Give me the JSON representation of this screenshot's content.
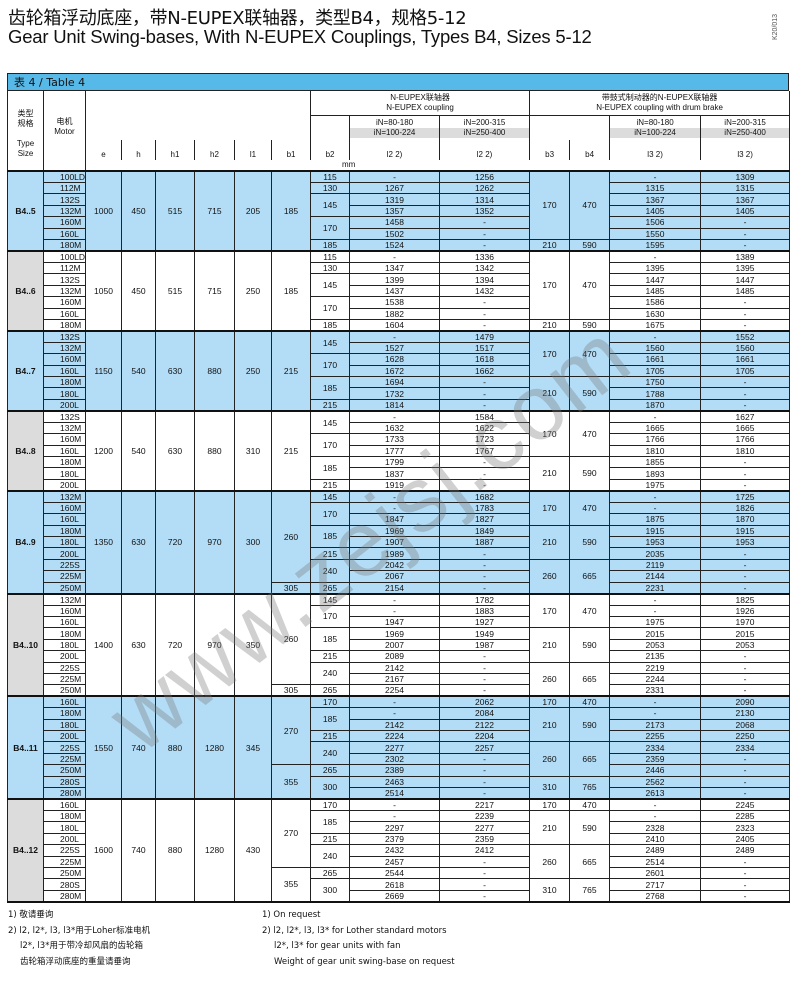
{
  "title_cn": "齿轮箱浮动底座，带N-EUPEX联轴器，类型B4，规格5-12",
  "title_en": "Gear Unit Swing-bases, With N-EUPEX Couplings, Types B4, Sizes 5-12",
  "doc_code": "K20/013",
  "watermark": "www.zejsj.com",
  "colors": {
    "title_bar": "#56b9e8",
    "row_blue": "#b3ddf6",
    "type_grey": "#dcdcdc"
  },
  "table": {
    "caption": "表 4 / Table 4",
    "header": {
      "type_cn": "类型\n规格",
      "type_en": "Type\nSize",
      "motor_cn": "电机",
      "motor_en": "Motor",
      "coupling_cn": "N-EUPEX联轴器",
      "coupling_en": "N-EUPEX coupling",
      "brake_cn": "带鼓式制动器的N-EUPEX联轴器",
      "brake_en": "N-EUPEX coupling with drum brake",
      "ratio_a1": "iN=80-180",
      "ratio_a2": "iN=100-224",
      "ratio_b1": "iN=200-315",
      "ratio_b2": "iN=250-400",
      "cols": [
        "e",
        "h",
        "h1",
        "h2",
        "l1",
        "b1",
        "b2",
        "l2 2)",
        "l2 2)",
        "b3",
        "b4",
        "l3 2)",
        "l3 2)"
      ],
      "unit": "mm"
    },
    "groups": [
      {
        "type": "B4..5",
        "e": "1000",
        "h": "450",
        "h1": "515",
        "h2": "715",
        "l1": "205",
        "motors": [
          "100LD",
          "112M",
          "132S",
          "132M",
          "160M",
          "160L",
          "180M"
        ],
        "b1": [
          {
            "v": "185",
            "span": 7
          }
        ],
        "b2": [
          {
            "v": "115",
            "span": 1
          },
          {
            "v": "130",
            "span": 1
          },
          {
            "v": "145",
            "span": 2
          },
          {
            "v": "170",
            "span": 2
          },
          {
            "v": "185",
            "span": 1
          }
        ],
        "l2a": [
          "-",
          "1267",
          "1319",
          "1357",
          "1458",
          "1502",
          "1524"
        ],
        "l2b": [
          "1256",
          "1262",
          "1314",
          "1352",
          "-",
          "-",
          "-"
        ],
        "b34": [
          {
            "b3": "170",
            "b4": "470",
            "span": 6
          },
          {
            "b3": "210",
            "b4": "590",
            "span": 1
          }
        ],
        "l3a": [
          "-",
          "1315",
          "1367",
          "1405",
          "1506",
          "1550",
          "1595"
        ],
        "l3b": [
          "1309",
          "1315",
          "1367",
          "1405",
          "-",
          "-",
          "-"
        ]
      },
      {
        "type": "B4..6",
        "e": "1050",
        "h": "450",
        "h1": "515",
        "h2": "715",
        "l1": "250",
        "motors": [
          "100LD",
          "112M",
          "132S",
          "132M",
          "160M",
          "160L",
          "180M"
        ],
        "b1": [
          {
            "v": "185",
            "span": 7
          }
        ],
        "b2": [
          {
            "v": "115",
            "span": 1
          },
          {
            "v": "130",
            "span": 1
          },
          {
            "v": "145",
            "span": 2
          },
          {
            "v": "170",
            "span": 2
          },
          {
            "v": "185",
            "span": 1
          }
        ],
        "l2a": [
          "-",
          "1347",
          "1399",
          "1437",
          "1538",
          "1882",
          "1604"
        ],
        "l2b": [
          "1336",
          "1342",
          "1394",
          "1432",
          "-",
          "-",
          "-"
        ],
        "b34": [
          {
            "b3": "170",
            "b4": "470",
            "span": 6
          },
          {
            "b3": "210",
            "b4": "590",
            "span": 1
          }
        ],
        "l3a": [
          "-",
          "1395",
          "1447",
          "1485",
          "1586",
          "1630",
          "1675"
        ],
        "l3b": [
          "1389",
          "1395",
          "1447",
          "1485",
          "-",
          "-",
          "-"
        ]
      },
      {
        "type": "B4..7",
        "e": "1150",
        "h": "540",
        "h1": "630",
        "h2": "880",
        "l1": "250",
        "motors": [
          "132S",
          "132M",
          "160M",
          "160L",
          "180M",
          "180L",
          "200L"
        ],
        "b1": [
          {
            "v": "215",
            "span": 7
          }
        ],
        "b2": [
          {
            "v": "145",
            "span": 2
          },
          {
            "v": "170",
            "span": 2
          },
          {
            "v": "185",
            "span": 2
          },
          {
            "v": "215",
            "span": 1
          }
        ],
        "l2a": [
          "-",
          "1527",
          "1628",
          "1672",
          "1694",
          "1732",
          "1814"
        ],
        "l2b": [
          "1479",
          "1517",
          "1618",
          "1662",
          "-",
          "-",
          "-"
        ],
        "b34": [
          {
            "b3": "170",
            "b4": "470",
            "span": 4
          },
          {
            "b3": "210",
            "b4": "590",
            "span": 3
          }
        ],
        "l3a": [
          "-",
          "1560",
          "1661",
          "1705",
          "1750",
          "1788",
          "1870"
        ],
        "l3b": [
          "1552",
          "1560",
          "1661",
          "1705",
          "-",
          "-",
          "-"
        ]
      },
      {
        "type": "B4..8",
        "e": "1200",
        "h": "540",
        "h1": "630",
        "h2": "880",
        "l1": "310",
        "motors": [
          "132S",
          "132M",
          "160M",
          "160L",
          "180M",
          "180L",
          "200L"
        ],
        "b1": [
          {
            "v": "215",
            "span": 7
          }
        ],
        "b2": [
          {
            "v": "145",
            "span": 2
          },
          {
            "v": "170",
            "span": 2
          },
          {
            "v": "185",
            "span": 2
          },
          {
            "v": "215",
            "span": 1
          }
        ],
        "l2a": [
          "-",
          "1632",
          "1733",
          "1777",
          "1799",
          "1837",
          "1919"
        ],
        "l2b": [
          "1584",
          "1622",
          "1723",
          "1767",
          "-",
          "-",
          "-"
        ],
        "b34": [
          {
            "b3": "170",
            "b4": "470",
            "span": 4
          },
          {
            "b3": "210",
            "b4": "590",
            "span": 3
          }
        ],
        "l3a": [
          "-",
          "1665",
          "1766",
          "1810",
          "1855",
          "1893",
          "1975"
        ],
        "l3b": [
          "1627",
          "1665",
          "1766",
          "1810",
          "-",
          "-",
          "-"
        ]
      },
      {
        "type": "B4..9",
        "e": "1350",
        "h": "630",
        "h1": "720",
        "h2": "970",
        "l1": "300",
        "motors": [
          "132M",
          "160M",
          "160L",
          "180M",
          "180L",
          "200L",
          "225S",
          "225M",
          "250M"
        ],
        "b1": [
          {
            "v": "260",
            "span": 8
          },
          {
            "v": "305",
            "span": 1
          }
        ],
        "b2": [
          {
            "v": "145",
            "span": 1
          },
          {
            "v": "170",
            "span": 2
          },
          {
            "v": "185",
            "span": 2
          },
          {
            "v": "215",
            "span": 1
          },
          {
            "v": "240",
            "span": 2
          },
          {
            "v": "265",
            "span": 1
          }
        ],
        "l2a": [
          "-",
          "-",
          "1847",
          "1969",
          "1907",
          "1989",
          "2042",
          "2067",
          "2154"
        ],
        "l2b": [
          "1682",
          "1783",
          "1827",
          "1849",
          "1887",
          "-",
          "-",
          "-",
          "-"
        ],
        "b34": [
          {
            "b3": "170",
            "b4": "470",
            "span": 3
          },
          {
            "b3": "210",
            "b4": "590",
            "span": 3
          },
          {
            "b3": "260",
            "b4": "665",
            "span": 3
          }
        ],
        "l3a": [
          "-",
          "-",
          "1875",
          "1915",
          "1953",
          "2035",
          "2119",
          "2144",
          "2231"
        ],
        "l3b": [
          "1725",
          "1826",
          "1870",
          "1915",
          "1953",
          "-",
          "-",
          "-",
          "-"
        ]
      },
      {
        "type": "B4..10",
        "e": "1400",
        "h": "630",
        "h1": "720",
        "h2": "970",
        "l1": "350",
        "motors": [
          "132M",
          "160M",
          "160L",
          "180M",
          "180L",
          "200L",
          "225S",
          "225M",
          "250M"
        ],
        "b1": [
          {
            "v": "260",
            "span": 8
          },
          {
            "v": "305",
            "span": 1
          }
        ],
        "b2": [
          {
            "v": "145",
            "span": 1
          },
          {
            "v": "170",
            "span": 2
          },
          {
            "v": "185",
            "span": 2
          },
          {
            "v": "215",
            "span": 1
          },
          {
            "v": "240",
            "span": 2
          },
          {
            "v": "265",
            "span": 1
          }
        ],
        "l2a": [
          "-",
          "-",
          "1947",
          "1969",
          "2007",
          "2089",
          "2142",
          "2167",
          "2254"
        ],
        "l2b": [
          "1782",
          "1883",
          "1927",
          "1949",
          "1987",
          "-",
          "-",
          "-",
          "-"
        ],
        "b34": [
          {
            "b3": "170",
            "b4": "470",
            "span": 3
          },
          {
            "b3": "210",
            "b4": "590",
            "span": 3
          },
          {
            "b3": "260",
            "b4": "665",
            "span": 3
          }
        ],
        "l3a": [
          "-",
          "-",
          "1975",
          "2015",
          "2053",
          "2135",
          "2219",
          "2244",
          "2331"
        ],
        "l3b": [
          "1825",
          "1926",
          "1970",
          "2015",
          "2053",
          "-",
          "-",
          "-",
          "-"
        ]
      },
      {
        "type": "B4..11",
        "e": "1550",
        "h": "740",
        "h1": "880",
        "h2": "1280",
        "l1": "345",
        "motors": [
          "160L",
          "180M",
          "180L",
          "200L",
          "225S",
          "225M",
          "250M",
          "280S",
          "280M"
        ],
        "b1": [
          {
            "v": "270",
            "span": 6
          },
          {
            "v": "355",
            "span": 3
          }
        ],
        "b2": [
          {
            "v": "170",
            "span": 1
          },
          {
            "v": "185",
            "span": 2
          },
          {
            "v": "215",
            "span": 1
          },
          {
            "v": "240",
            "span": 2
          },
          {
            "v": "265",
            "span": 1
          },
          {
            "v": "300",
            "span": 2
          }
        ],
        "l2a": [
          "-",
          "-",
          "2142",
          "2224",
          "2277",
          "2302",
          "2389",
          "2463",
          "2514"
        ],
        "l2b": [
          "2062",
          "2084",
          "2122",
          "2204",
          "2257",
          "-",
          "-",
          "-",
          "-"
        ],
        "b34": [
          {
            "b3": "170",
            "b4": "470",
            "span": 1
          },
          {
            "b3": "210",
            "b4": "590",
            "span": 3
          },
          {
            "b3": "260",
            "b4": "665",
            "span": 3
          },
          {
            "b3": "310",
            "b4": "765",
            "span": 2
          }
        ],
        "l3a": [
          "-",
          "-",
          "2173",
          "2255",
          "2334",
          "2359",
          "2446",
          "2562",
          "2613"
        ],
        "l3b": [
          "2090",
          "2130",
          "2068",
          "2250",
          "2334",
          "-",
          "-",
          "-",
          "-"
        ]
      },
      {
        "type": "B4..12",
        "e": "1600",
        "h": "740",
        "h1": "880",
        "h2": "1280",
        "l1": "430",
        "motors": [
          "160L",
          "180M",
          "180L",
          "200L",
          "225S",
          "225M",
          "250M",
          "280S",
          "280M"
        ],
        "b1": [
          {
            "v": "270",
            "span": 6
          },
          {
            "v": "355",
            "span": 3
          }
        ],
        "b2": [
          {
            "v": "170",
            "span": 1
          },
          {
            "v": "185",
            "span": 2
          },
          {
            "v": "215",
            "span": 1
          },
          {
            "v": "240",
            "span": 2
          },
          {
            "v": "265",
            "span": 1
          },
          {
            "v": "300",
            "span": 2
          }
        ],
        "l2a": [
          "-",
          "-",
          "2297",
          "2379",
          "2432",
          "2457",
          "2544",
          "2618",
          "2669"
        ],
        "l2b": [
          "2217",
          "2239",
          "2277",
          "2359",
          "2412",
          "-",
          "-",
          "-",
          "-"
        ],
        "b34": [
          {
            "b3": "170",
            "b4": "470",
            "span": 1
          },
          {
            "b3": "210",
            "b4": "590",
            "span": 3
          },
          {
            "b3": "260",
            "b4": "665",
            "span": 3
          },
          {
            "b3": "310",
            "b4": "765",
            "span": 2
          }
        ],
        "l3a": [
          "-",
          "-",
          "2328",
          "2410",
          "2489",
          "2514",
          "2601",
          "2717",
          "2768"
        ],
        "l3b": [
          "2245",
          "2285",
          "2323",
          "2405",
          "2489",
          "-",
          "-",
          "-",
          "-"
        ]
      }
    ]
  },
  "footnotes": {
    "cn": [
      "1) 敬请垂询",
      "2) l2, l2*, l3, l3*用于Loher标准电机",
      "l2*, l3*用于带冷却风扇的齿轮箱",
      "齿轮箱浮动底座的重量请垂询"
    ],
    "en": [
      "1) On request",
      "2) l2, l2*, l3, l3* for Lother standard motors",
      "l2*, l3* for gear units with fan",
      "Weight of gear unit swing-base on request"
    ]
  }
}
